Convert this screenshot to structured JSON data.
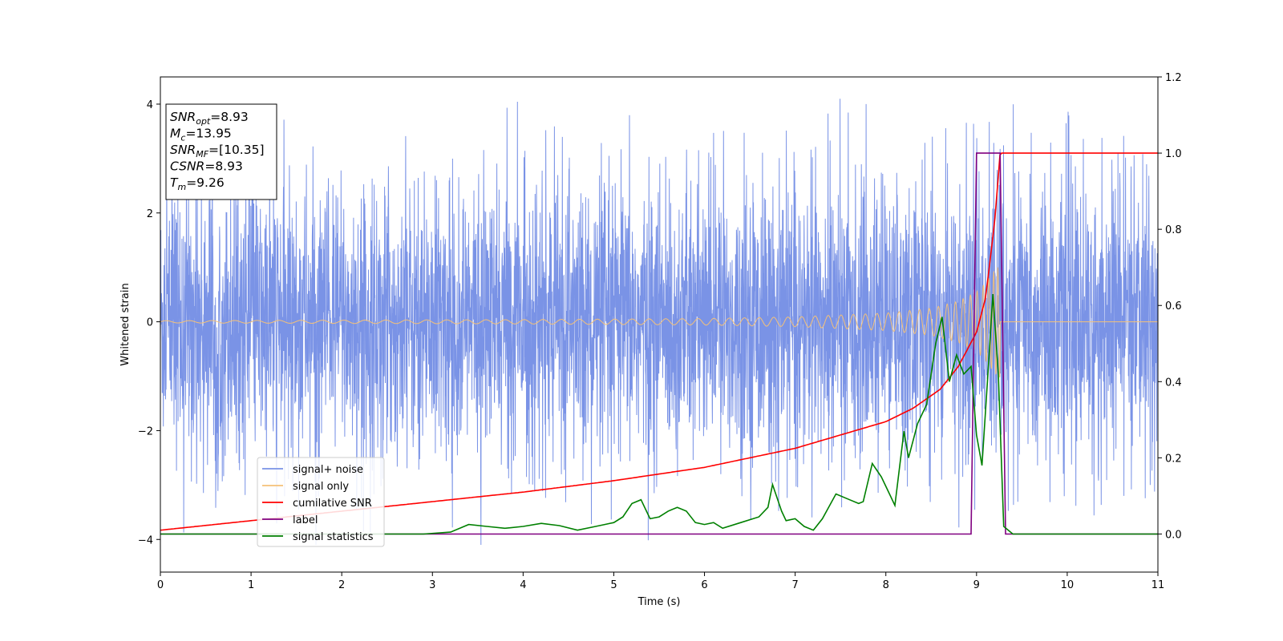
{
  "chart_data": {
    "type": "line",
    "xlabel": "Time (s)",
    "ylabel": "Whitened strain",
    "xlim": [
      0,
      11
    ],
    "ylim_left": [
      -4.6,
      4.5
    ],
    "ylim_right": [
      -0.1,
      1.2
    ],
    "x_ticks": [
      "0",
      "1",
      "2",
      "3",
      "4",
      "5",
      "6",
      "7",
      "8",
      "9",
      "10",
      "11"
    ],
    "y_ticks_left": [
      "−4",
      "−2",
      "0",
      "2",
      "4"
    ],
    "y_ticks_right": [
      "0.0",
      "0.2",
      "0.4",
      "0.6",
      "0.8",
      "1.0",
      "1.2"
    ],
    "legend_placement": "lower-left",
    "annotation": {
      "lines": [
        {
          "sym": "SNR",
          "sub": "opt",
          "value": "=8.93"
        },
        {
          "sym": "M",
          "sub": "c",
          "value": "=13.95"
        },
        {
          "sym": "SNR",
          "sub": "MF",
          "value": "=[10.35]"
        },
        {
          "sym": "CSNR",
          "sub": "",
          "value": "=8.93"
        },
        {
          "sym": "T",
          "sub": "m",
          "value": "=9.26"
        }
      ]
    },
    "series": [
      {
        "name": "signal+ noise",
        "axis": "left",
        "color": "#7a93e6",
        "description_type": "noise",
        "envelope": {
          "x": [
            0,
            11
          ],
          "typical_range": [
            -2.2,
            2.2
          ],
          "peak_range": [
            -4.1,
            4.1
          ]
        }
      },
      {
        "name": "signal only",
        "axis": "left",
        "color": "#f4c178",
        "description_type": "chirp",
        "envelope": {
          "x": [
            0,
            2,
            4,
            6,
            7,
            8,
            8.5,
            8.8,
            9.0,
            9.1,
            9.2,
            9.26
          ],
          "amplitude": [
            0.02,
            0.03,
            0.04,
            0.06,
            0.09,
            0.16,
            0.25,
            0.38,
            0.55,
            0.72,
            0.95,
            1.05
          ]
        },
        "merger_time": 9.26
      },
      {
        "name": "cumilative SNR",
        "axis": "right",
        "color": "#ff0000",
        "x": [
          0,
          1,
          2,
          3,
          4,
          5,
          6,
          7,
          7.5,
          8,
          8.3,
          8.6,
          8.8,
          9.0,
          9.1,
          9.2,
          9.26,
          11
        ],
        "values": [
          0.01,
          0.035,
          0.06,
          0.085,
          0.11,
          0.14,
          0.175,
          0.225,
          0.26,
          0.295,
          0.33,
          0.38,
          0.44,
          0.53,
          0.62,
          0.82,
          1.0,
          1.0
        ]
      },
      {
        "name": "label",
        "axis": "right",
        "color": "#800080",
        "x": [
          0,
          8.94,
          9.0,
          9.26,
          9.32,
          11
        ],
        "values": [
          0,
          0,
          1,
          1,
          0,
          0
        ]
      },
      {
        "name": "signal statistics",
        "axis": "right",
        "color": "#008000",
        "x": [
          0,
          1.0,
          2.0,
          2.9,
          3.2,
          3.4,
          3.6,
          3.8,
          4.0,
          4.2,
          4.4,
          4.6,
          4.8,
          4.9,
          5.0,
          5.1,
          5.2,
          5.3,
          5.4,
          5.5,
          5.6,
          5.7,
          5.8,
          5.9,
          6.0,
          6.1,
          6.2,
          6.4,
          6.6,
          6.7,
          6.75,
          6.85,
          6.9,
          7.0,
          7.1,
          7.2,
          7.3,
          7.45,
          7.6,
          7.7,
          7.75,
          7.85,
          7.95,
          8.05,
          8.1,
          8.2,
          8.25,
          8.35,
          8.45,
          8.55,
          8.62,
          8.7,
          8.78,
          8.86,
          8.94,
          9.0,
          9.06,
          9.12,
          9.18,
          9.24,
          9.3,
          9.4,
          10.0,
          11.0
        ],
        "values": [
          0.0,
          0.0,
          0.0,
          0.0,
          0.005,
          0.025,
          0.02,
          0.015,
          0.02,
          0.028,
          0.022,
          0.01,
          0.02,
          0.025,
          0.03,
          0.045,
          0.08,
          0.09,
          0.04,
          0.045,
          0.06,
          0.07,
          0.06,
          0.03,
          0.025,
          0.03,
          0.015,
          0.03,
          0.045,
          0.07,
          0.13,
          0.06,
          0.035,
          0.04,
          0.02,
          0.01,
          0.04,
          0.105,
          0.09,
          0.08,
          0.085,
          0.185,
          0.15,
          0.1,
          0.075,
          0.27,
          0.2,
          0.29,
          0.34,
          0.5,
          0.57,
          0.4,
          0.47,
          0.42,
          0.44,
          0.26,
          0.18,
          0.4,
          0.63,
          0.42,
          0.02,
          0.0,
          0.0,
          0.0
        ]
      }
    ]
  }
}
